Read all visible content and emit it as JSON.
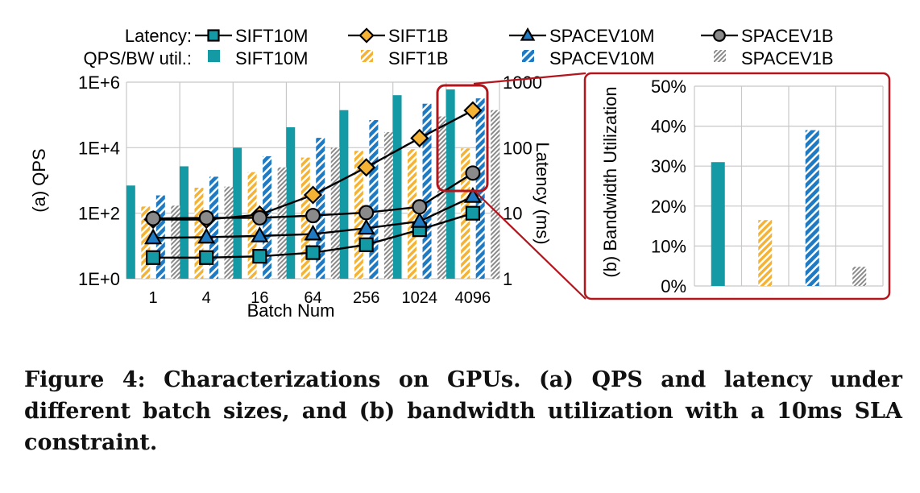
{
  "colors": {
    "SIFT10M": "#139aa4",
    "SIFT1B": "#f5b335",
    "SPACEV10M": "#1f7ac4",
    "SPACEV1B": "#8a8a8a",
    "highlight": "#b3151d",
    "line": "#000000",
    "grid": "#c8c8c8"
  },
  "legend": {
    "latency_label": "Latency:",
    "bar_label": "QPS/BW util.:"
  },
  "caption": "Figure 4: Characterizations on GPUs. (a) QPS and latency under different batch sizes, and (b) bandwidth utilization with a 10ms SLA constraint.",
  "chart_data": [
    {
      "type": "bar+line",
      "xlabel": "Batch Num",
      "ylabel": "(a) QPS",
      "y2label": "Latency (ms)",
      "categories": [
        "1",
        "4",
        "16",
        "64",
        "256",
        "1024",
        "4096"
      ],
      "yscale": "log",
      "ylim": [
        1,
        1000000
      ],
      "yticks": [
        "1E+0",
        "1E+2",
        "1E+4",
        "1E+6"
      ],
      "y2scale": "log",
      "y2lim": [
        1,
        1000
      ],
      "y2ticks": [
        "1",
        "10",
        "100",
        "1000"
      ],
      "grid": true,
      "legend_position": "top",
      "bar_series": [
        {
          "name": "SIFT10M",
          "values": [
            700,
            2700,
            10000,
            42000,
            140000,
            400000,
            600000
          ]
        },
        {
          "name": "SIFT1B",
          "values": [
            160,
            600,
            1800,
            5000,
            8000,
            9000,
            9500
          ]
        },
        {
          "name": "SPACEV10M",
          "values": [
            350,
            1300,
            5500,
            20000,
            70000,
            220000,
            320000
          ]
        },
        {
          "name": "SPACEV1B",
          "values": [
            170,
            650,
            2500,
            10000,
            30000,
            90000,
            140000
          ]
        }
      ],
      "line_series": [
        {
          "name": "SIFT10M",
          "marker": "square",
          "values": [
            2.1,
            2.1,
            2.2,
            2.5,
            3.3,
            5.6,
            10
          ]
        },
        {
          "name": "SIFT1B",
          "marker": "diamond",
          "values": [
            8,
            8,
            9.5,
            19,
            50,
            140,
            370
          ]
        },
        {
          "name": "SPACEV10M",
          "marker": "triangle",
          "values": [
            4.2,
            4.3,
            4.5,
            4.8,
            5.9,
            7.5,
            18
          ]
        },
        {
          "name": "SPACEV1B",
          "marker": "circle",
          "values": [
            8.3,
            8.5,
            8.5,
            9.2,
            10.2,
            12.5,
            41
          ]
        }
      ]
    },
    {
      "type": "bar",
      "ylabel": "(b) Bandwidth Utilization",
      "categories": [
        "SIFT10M",
        "SIFT1B",
        "SPACEV10M",
        "SPACEV1B"
      ],
      "values": [
        31,
        16.5,
        39,
        4.8
      ],
      "ylim": [
        0,
        50
      ],
      "yticks": [
        "0%",
        "10%",
        "20%",
        "30%",
        "40%",
        "50%"
      ],
      "grid": true
    }
  ]
}
